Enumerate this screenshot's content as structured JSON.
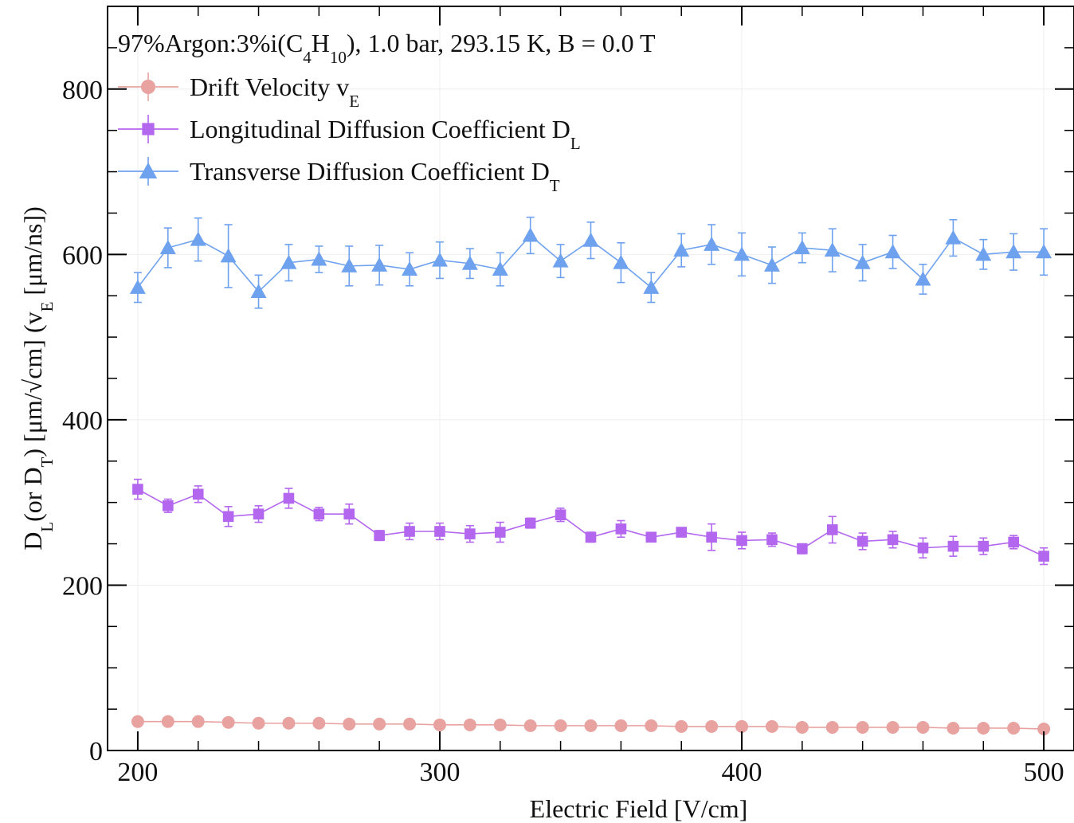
{
  "chart_data": {
    "type": "scatter",
    "title": {
      "parts": [
        {
          "text": "97%Argon:3%i(C"
        },
        {
          "text": "4",
          "sub": true
        },
        {
          "text": "H"
        },
        {
          "text": "10",
          "sub": true
        },
        {
          "text": "), 1.0 bar, 293.15 K, B = 0.0 T"
        }
      ]
    },
    "xlabel": "Electric Field [V/cm]",
    "ylabel": {
      "parts": [
        {
          "text": "D"
        },
        {
          "text": "L",
          "sub": true
        },
        {
          "text": "(or D"
        },
        {
          "text": "T",
          "sub": true
        },
        {
          "text": ") [μm/√cm] (v"
        },
        {
          "text": "E",
          "sub": true
        },
        {
          "text": " [μm/ns])"
        }
      ]
    },
    "xlim": [
      190,
      510
    ],
    "ylim": [
      0,
      900
    ],
    "x_ticks": [
      200,
      300,
      400,
      500
    ],
    "y_ticks": [
      0,
      200,
      400,
      600,
      800
    ],
    "grid": true,
    "legend_position": "top-left",
    "x": [
      200,
      210,
      220,
      230,
      240,
      250,
      260,
      270,
      280,
      290,
      300,
      310,
      320,
      330,
      340,
      350,
      360,
      370,
      380,
      390,
      400,
      410,
      420,
      430,
      440,
      450,
      460,
      470,
      480,
      490,
      500
    ],
    "series": [
      {
        "name": "Drift Velocity v",
        "name_sub": "E",
        "color": "#e8a3a0",
        "marker": "circle",
        "values": [
          35,
          35,
          35,
          34,
          33,
          33,
          33,
          32,
          32,
          32,
          31,
          31,
          31,
          30,
          30,
          30,
          30,
          30,
          29,
          29,
          29,
          29,
          28,
          28,
          28,
          28,
          28,
          27,
          27,
          27,
          26
        ],
        "errors": [
          2,
          2,
          2,
          2,
          2,
          2,
          2,
          2,
          2,
          2,
          2,
          2,
          2,
          2,
          2,
          2,
          2,
          2,
          2,
          2,
          2,
          2,
          2,
          2,
          2,
          2,
          2,
          2,
          2,
          2,
          2
        ]
      },
      {
        "name": "Longitudinal Diffusion Coefficient D",
        "name_sub": "L",
        "color": "#b366ee",
        "marker": "square",
        "values": [
          316,
          296,
          310,
          283,
          286,
          305,
          286,
          286,
          260,
          265,
          265,
          262,
          264,
          275,
          285,
          258,
          268,
          258,
          264,
          258,
          254,
          255,
          244,
          267,
          253,
          255,
          245,
          247,
          247,
          252,
          235
        ],
        "errors": [
          12,
          8,
          10,
          12,
          10,
          12,
          8,
          12,
          6,
          10,
          10,
          10,
          12,
          6,
          8,
          6,
          10,
          4,
          4,
          16,
          10,
          8,
          6,
          16,
          10,
          10,
          12,
          12,
          10,
          8,
          10
        ]
      },
      {
        "name": "Transverse Diffusion Coefficient D",
        "name_sub": "T",
        "color": "#6fa2ee",
        "marker": "triangle",
        "values": [
          560,
          608,
          618,
          598,
          555,
          590,
          594,
          586,
          587,
          582,
          593,
          589,
          582,
          623,
          592,
          617,
          590,
          560,
          605,
          612,
          600,
          587,
          608,
          605,
          590,
          603,
          570,
          620,
          600,
          603,
          603
        ],
        "errors": [
          18,
          24,
          26,
          38,
          20,
          22,
          16,
          24,
          24,
          20,
          22,
          18,
          20,
          22,
          20,
          22,
          24,
          18,
          20,
          24,
          26,
          22,
          18,
          26,
          22,
          20,
          18,
          22,
          18,
          22,
          28
        ]
      }
    ]
  }
}
